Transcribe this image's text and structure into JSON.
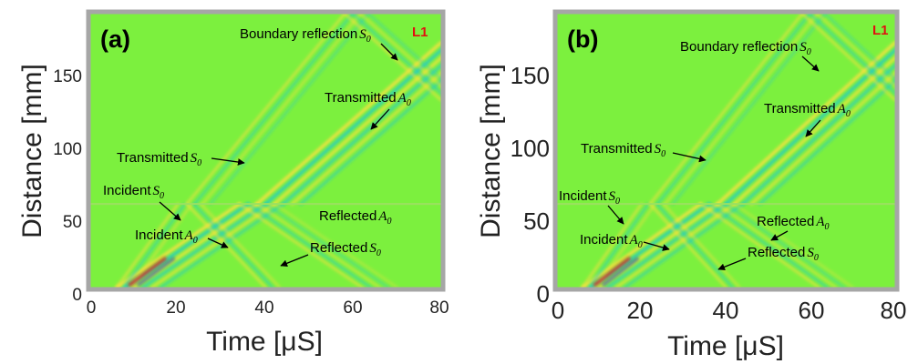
{
  "colors": {
    "field": "#7cf03e",
    "frame": "#a6a6a6",
    "tag": "#e01010",
    "wave_pos": "#ffe040",
    "wave_neg": "#20c8d0",
    "wave_hot": "#e02020",
    "wave_cold": "#1040d0"
  },
  "chart_data": [
    {
      "type": "heatmap",
      "panel_label": "(a)",
      "tag": "L1",
      "xlabel": "Time [μS]",
      "ylabel": "Distance [mm]",
      "xlim": [
        0,
        80
      ],
      "ylim": [
        0,
        190
      ],
      "xticks": [
        "0",
        "20",
        "40",
        "60",
        "80"
      ],
      "yticks": [
        "0",
        "50",
        "100",
        "150"
      ],
      "ytick_values": [
        0,
        50,
        100,
        150
      ],
      "xtick_values": [
        0,
        20,
        40,
        60,
        80
      ],
      "interface_mm": 58,
      "annotations": [
        {
          "text": "Boundary  reflection",
          "sym": "S",
          "sub": "0"
        },
        {
          "text": "Transmitted",
          "sym": "A",
          "sub": "0"
        },
        {
          "text": "Transmitted",
          "sym": "S",
          "sub": "0"
        },
        {
          "text": "Incident",
          "sym": "S",
          "sub": "0"
        },
        {
          "text": "Reflected",
          "sym": "A",
          "sub": "0"
        },
        {
          "text": "Incident",
          "sym": "A",
          "sub": "0"
        },
        {
          "text": "Reflected",
          "sym": "S",
          "sub": "0"
        }
      ]
    },
    {
      "type": "heatmap",
      "panel_label": "(b)",
      "tag": "L1",
      "xlabel": "Time [μS]",
      "ylabel": "Distance [mm]",
      "xlim": [
        0,
        80
      ],
      "ylim": [
        0,
        190
      ],
      "xticks": [
        "0",
        "20",
        "40",
        "60",
        "80"
      ],
      "yticks": [
        "0",
        "50",
        "100",
        "150"
      ],
      "ytick_values": [
        0,
        50,
        100,
        150
      ],
      "xtick_values": [
        0,
        20,
        40,
        60,
        80
      ],
      "interface_mm": 58,
      "annotations": [
        {
          "text": "Boundary  reflection",
          "sym": "S",
          "sub": "0"
        },
        {
          "text": "Transmitted",
          "sym": "A",
          "sub": "0"
        },
        {
          "text": "Transmitted",
          "sym": "S",
          "sub": "0"
        },
        {
          "text": "Incident",
          "sym": "S",
          "sub": "0"
        },
        {
          "text": "Reflected",
          "sym": "A",
          "sub": "0"
        },
        {
          "text": "Incident",
          "sym": "A",
          "sub": "0"
        },
        {
          "text": "Reflected",
          "sym": "S",
          "sub": "0"
        }
      ]
    }
  ]
}
